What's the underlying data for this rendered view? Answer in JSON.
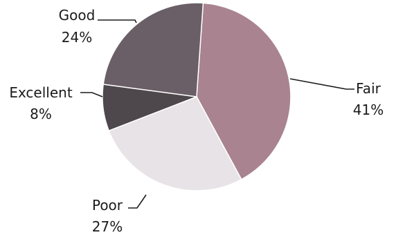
{
  "chart_data": {
    "type": "pie",
    "title": "",
    "slices": [
      {
        "name": "Fair",
        "value": 41,
        "value_label": "41%",
        "color": "#a9838f"
      },
      {
        "name": "Poor",
        "value": 27,
        "value_label": "27%",
        "color": "#e8e3e6"
      },
      {
        "name": "Excellent",
        "value": 8,
        "value_label": "8%",
        "color": "#4e474c"
      },
      {
        "name": "Good",
        "value": 24,
        "value_label": "24%",
        "color": "#6a5f67"
      }
    ],
    "unit": "%",
    "legend": "none"
  }
}
